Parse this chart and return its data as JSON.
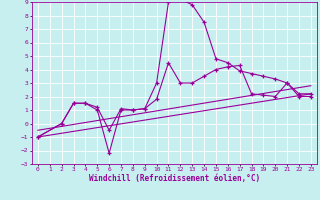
{
  "xlabel": "Windchill (Refroidissement éolien,°C)",
  "xlim": [
    -0.5,
    23.5
  ],
  "ylim": [
    -3,
    9
  ],
  "xticks": [
    0,
    1,
    2,
    3,
    4,
    5,
    6,
    7,
    8,
    9,
    10,
    11,
    12,
    13,
    14,
    15,
    16,
    17,
    18,
    19,
    20,
    21,
    22,
    23
  ],
  "yticks": [
    -3,
    -2,
    -1,
    0,
    1,
    2,
    3,
    4,
    5,
    6,
    7,
    8,
    9
  ],
  "bg_color": "#c8eff0",
  "line_color": "#990099",
  "grid_color": "#ffffff",
  "series": [
    {
      "x": [
        0,
        2,
        3,
        4,
        5,
        6,
        7,
        8,
        9,
        10,
        11,
        12,
        13,
        14,
        15,
        16,
        17,
        18,
        19,
        20,
        21,
        22,
        23
      ],
      "y": [
        -1,
        0,
        1.5,
        1.5,
        1.2,
        -0.5,
        1.1,
        1.0,
        1.1,
        3.0,
        9.0,
        9.2,
        8.8,
        7.5,
        4.8,
        4.5,
        3.9,
        3.7,
        3.5,
        3.3,
        3.0,
        2.2,
        2.2
      ],
      "marker": "+"
    },
    {
      "x": [
        0,
        2,
        3,
        4,
        5,
        6,
        7,
        8,
        9,
        10,
        11,
        12,
        13,
        14,
        15,
        16,
        17,
        18,
        19,
        20,
        21,
        22,
        23
      ],
      "y": [
        -1,
        0,
        1.5,
        1.5,
        1.0,
        -2.2,
        1.0,
        1.0,
        1.1,
        1.8,
        4.5,
        3.0,
        3.0,
        3.5,
        4.0,
        4.2,
        4.3,
        2.2,
        2.1,
        2.0,
        3.0,
        2.0,
        2.0
      ],
      "marker": "+"
    },
    {
      "x": [
        0,
        23
      ],
      "y": [
        -1.0,
        2.2
      ],
      "marker": null
    },
    {
      "x": [
        0,
        23
      ],
      "y": [
        -0.5,
        2.8
      ],
      "marker": null
    }
  ]
}
